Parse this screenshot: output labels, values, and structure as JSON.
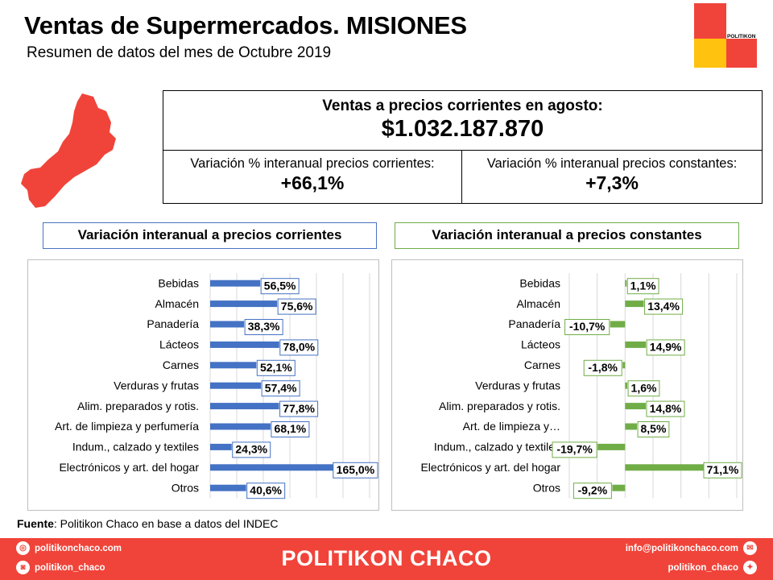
{
  "header": {
    "title": "Ventas de Supermercados. MISIONES",
    "subtitle": "Resumen de datos del mes de Octubre 2019",
    "logo_text": "POLITIKON"
  },
  "summary": {
    "main_label": "Ventas a precios corrientes en agosto:",
    "main_value": "$1.032.187.870",
    "left_label": "Variación % interanual precios corrientes:",
    "left_value": "+66,1%",
    "right_label": "Variación % interanual precios constantes:",
    "right_value": "+7,3%"
  },
  "colors": {
    "blue": "#4472c4",
    "green": "#70ad47",
    "red": "#f0443a",
    "yellow": "#ffc20e"
  },
  "chart_data": [
    {
      "type": "bar",
      "orientation": "horizontal",
      "title": "Variación interanual a precios corrientes",
      "categories": [
        "Bebidas",
        "Almacén",
        "Panadería",
        "Lácteos",
        "Carnes",
        "Verduras y frutas",
        "Alim. preparados y rotis.",
        "Art. de limpieza y perfumería",
        "Indum., calzado y textiles",
        "Electrónicos y art. del hogar",
        "Otros"
      ],
      "values": [
        56.5,
        75.6,
        38.3,
        78.0,
        52.1,
        57.4,
        77.8,
        68.1,
        24.3,
        165.0,
        40.6
      ],
      "labels": [
        "56,5%",
        "75,6%",
        "38,3%",
        "78,0%",
        "52,1%",
        "57,4%",
        "77,8%",
        "68,1%",
        "24,3%",
        "165,0%",
        "40,6%"
      ],
      "color": "#4472c4",
      "xlim": [
        0,
        180
      ],
      "grid": true
    },
    {
      "type": "bar",
      "orientation": "horizontal",
      "title": "Variación interanual a precios constantes",
      "categories": [
        "Bebidas",
        "Almacén",
        "Panadería",
        "Lácteos",
        "Carnes",
        "Verduras y frutas",
        "Alim. preparados y rotis.",
        "Art. de limpieza y…",
        "Indum., calzado y textiles",
        "Electrónicos y art. del hogar",
        "Otros"
      ],
      "values": [
        1.1,
        13.4,
        -10.7,
        14.9,
        -1.8,
        1.6,
        14.8,
        8.5,
        -19.7,
        71.1,
        -9.2
      ],
      "labels": [
        "1,1%",
        "13,4%",
        "-10,7%",
        "14,9%",
        "-1,8%",
        "1,6%",
        "14,8%",
        "8,5%",
        "-19,7%",
        "71,1%",
        "-9,2%"
      ],
      "color": "#70ad47",
      "xlim": [
        -40,
        80
      ],
      "grid": true
    }
  ],
  "source": {
    "label": "Fuente",
    "text": ": Politikon Chaco en base a datos del INDEC"
  },
  "footer": {
    "brand": "POLITIKON CHACO",
    "web": "politikonchaco.com",
    "instagram": "politikon_chaco",
    "email": "info@politikonchaco.com",
    "twitter": "politikon_chaco"
  }
}
